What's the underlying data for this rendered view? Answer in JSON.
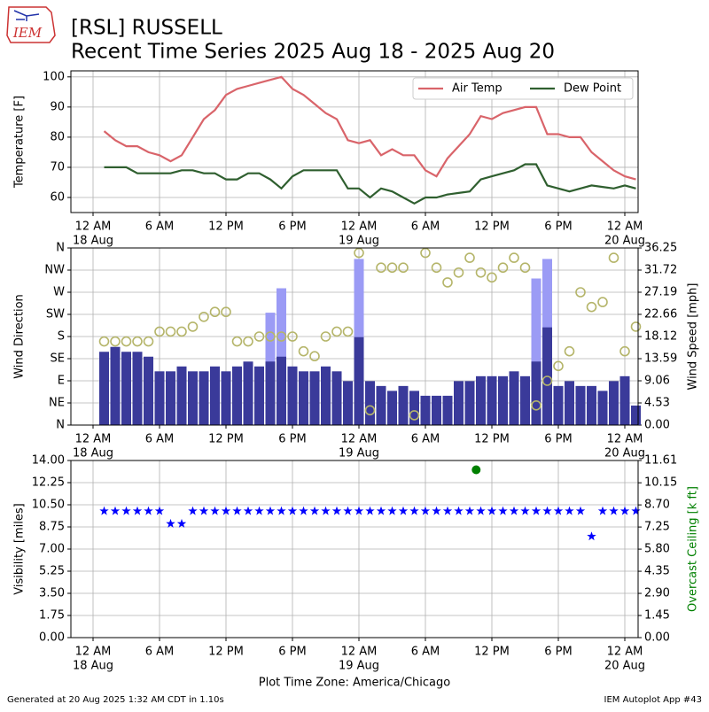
{
  "header": {
    "logo_text": "IEM",
    "title": "[RSL] RUSSELL",
    "subtitle": "Recent Time Series 2025 Aug 18 - 2025 Aug 20"
  },
  "chart_data": [
    {
      "type": "line",
      "ylabel": "Temperature [F]",
      "grid": true,
      "legend": "upper right",
      "xlim": [
        "2025-08-17T22:00",
        "2025-08-20T01:12"
      ],
      "xticks": [
        {
          "value": "2025-08-18T00:00",
          "label": "12 AM"
        },
        {
          "value": "2025-08-18T06:00",
          "label": "6 AM"
        },
        {
          "value": "2025-08-18T12:00",
          "label": "12 PM"
        },
        {
          "value": "2025-08-18T18:00",
          "label": "6 PM"
        },
        {
          "value": "2025-08-19T00:00",
          "label": "12 AM"
        },
        {
          "value": "2025-08-19T06:00",
          "label": "6 AM"
        },
        {
          "value": "2025-08-19T12:00",
          "label": "12 PM"
        },
        {
          "value": "2025-08-19T18:00",
          "label": "6 PM"
        },
        {
          "value": "2025-08-20T00:00",
          "label": "12 AM"
        }
      ],
      "xtick_dates": [
        {
          "value": "2025-08-18T00:00",
          "label": "18 Aug"
        },
        {
          "value": "2025-08-19T00:00",
          "label": "19 Aug"
        },
        {
          "value": "2025-08-20T00:00",
          "label": "20 Aug"
        }
      ],
      "ylim": [
        55,
        102
      ],
      "yticks": [
        60,
        70,
        80,
        90,
        100
      ],
      "x": [
        "2025-08-18T01:00",
        "2025-08-18T02:00",
        "2025-08-18T03:00",
        "2025-08-18T04:00",
        "2025-08-18T05:00",
        "2025-08-18T06:00",
        "2025-08-18T07:00",
        "2025-08-18T08:00",
        "2025-08-18T09:00",
        "2025-08-18T10:00",
        "2025-08-18T11:00",
        "2025-08-18T12:00",
        "2025-08-18T13:00",
        "2025-08-18T14:00",
        "2025-08-18T15:00",
        "2025-08-18T16:00",
        "2025-08-18T17:00",
        "2025-08-18T18:00",
        "2025-08-18T19:00",
        "2025-08-18T20:00",
        "2025-08-18T21:00",
        "2025-08-18T22:00",
        "2025-08-18T23:00",
        "2025-08-19T00:00",
        "2025-08-19T01:00",
        "2025-08-19T02:00",
        "2025-08-19T03:00",
        "2025-08-19T04:00",
        "2025-08-19T05:00",
        "2025-08-19T06:00",
        "2025-08-19T07:00",
        "2025-08-19T08:00",
        "2025-08-19T09:00",
        "2025-08-19T10:00",
        "2025-08-19T11:00",
        "2025-08-19T12:00",
        "2025-08-19T13:00",
        "2025-08-19T14:00",
        "2025-08-19T15:00",
        "2025-08-19T16:00",
        "2025-08-19T17:00",
        "2025-08-19T18:00",
        "2025-08-19T19:00",
        "2025-08-19T20:00",
        "2025-08-19T21:00",
        "2025-08-19T22:00",
        "2025-08-19T23:00",
        "2025-08-20T00:00",
        "2025-08-20T01:00"
      ],
      "series": [
        {
          "name": "Air Temp",
          "color": "#d9646a",
          "values": [
            82,
            79,
            77,
            77,
            75,
            74,
            72,
            74,
            80,
            86,
            89,
            94,
            96,
            97,
            98,
            99,
            100,
            96,
            94,
            91,
            88,
            86,
            79,
            78,
            79,
            74,
            76,
            74,
            74,
            69,
            67,
            73,
            77,
            81,
            87,
            86,
            88,
            89,
            90,
            90,
            81,
            81,
            80,
            80,
            75,
            72,
            69,
            67,
            66
          ]
        },
        {
          "name": "Dew Point",
          "color": "#2f5f2f",
          "values": [
            70,
            70,
            70,
            68,
            68,
            68,
            68,
            69,
            69,
            68,
            68,
            66,
            66,
            68,
            68,
            66,
            63,
            67,
            69,
            69,
            69,
            69,
            63,
            63,
            60,
            63,
            62,
            60,
            58,
            60,
            60,
            61,
            61.5,
            62,
            66,
            67,
            68,
            69,
            71,
            71,
            64,
            63,
            62,
            63,
            64,
            63.5,
            63,
            64,
            63
          ]
        }
      ]
    },
    {
      "type": "mixed",
      "ylabel": "Wind Direction",
      "y2label": "Wind Speed [mph]",
      "grid": true,
      "xlim": [
        "2025-08-17T22:00",
        "2025-08-20T01:12"
      ],
      "xticks": [
        {
          "value": "2025-08-18T00:00",
          "label": "12 AM"
        },
        {
          "value": "2025-08-18T06:00",
          "label": "6 AM"
        },
        {
          "value": "2025-08-18T12:00",
          "label": "12 PM"
        },
        {
          "value": "2025-08-18T18:00",
          "label": "6 PM"
        },
        {
          "value": "2025-08-19T00:00",
          "label": "12 AM"
        },
        {
          "value": "2025-08-19T06:00",
          "label": "6 AM"
        },
        {
          "value": "2025-08-19T12:00",
          "label": "12 PM"
        },
        {
          "value": "2025-08-19T18:00",
          "label": "6 PM"
        },
        {
          "value": "2025-08-20T00:00",
          "label": "12 AM"
        }
      ],
      "xtick_dates": [
        {
          "value": "2025-08-18T00:00",
          "label": "18 Aug"
        },
        {
          "value": "2025-08-19T00:00",
          "label": "19 Aug"
        },
        {
          "value": "2025-08-20T00:00",
          "label": "20 Aug"
        }
      ],
      "ylim": [
        0,
        360
      ],
      "yticks": [
        {
          "value": 0,
          "label": "N"
        },
        {
          "value": 45,
          "label": "NE"
        },
        {
          "value": 90,
          "label": "E"
        },
        {
          "value": 135,
          "label": "SE"
        },
        {
          "value": 180,
          "label": "S"
        },
        {
          "value": 225,
          "label": "SW"
        },
        {
          "value": 270,
          "label": "W"
        },
        {
          "value": 315,
          "label": "NW"
        },
        {
          "value": 360,
          "label": "N"
        }
      ],
      "y2lim": [
        0,
        36.25
      ],
      "y2ticks": [
        {
          "value": 0,
          "label": "0.00"
        },
        4.53,
        9.06,
        13.59,
        18.12,
        22.66,
        27.19,
        31.72,
        36.25
      ],
      "x": [
        "2025-08-18T01:00",
        "2025-08-18T02:00",
        "2025-08-18T03:00",
        "2025-08-18T04:00",
        "2025-08-18T05:00",
        "2025-08-18T06:00",
        "2025-08-18T07:00",
        "2025-08-18T08:00",
        "2025-08-18T09:00",
        "2025-08-18T10:00",
        "2025-08-18T11:00",
        "2025-08-18T12:00",
        "2025-08-18T13:00",
        "2025-08-18T14:00",
        "2025-08-18T15:00",
        "2025-08-18T16:00",
        "2025-08-18T17:00",
        "2025-08-18T18:00",
        "2025-08-18T19:00",
        "2025-08-18T20:00",
        "2025-08-18T21:00",
        "2025-08-18T22:00",
        "2025-08-18T23:00",
        "2025-08-19T00:00",
        "2025-08-19T01:00",
        "2025-08-19T02:00",
        "2025-08-19T03:00",
        "2025-08-19T04:00",
        "2025-08-19T05:00",
        "2025-08-19T06:00",
        "2025-08-19T07:00",
        "2025-08-19T08:00",
        "2025-08-19T09:00",
        "2025-08-19T10:00",
        "2025-08-19T11:00",
        "2025-08-19T12:00",
        "2025-08-19T13:00",
        "2025-08-19T14:00",
        "2025-08-19T15:00",
        "2025-08-19T16:00",
        "2025-08-19T17:00",
        "2025-08-19T18:00",
        "2025-08-19T19:00",
        "2025-08-19T20:00",
        "2025-08-19T21:00",
        "2025-08-19T22:00",
        "2025-08-19T23:00",
        "2025-08-20T00:00",
        "2025-08-20T01:00"
      ],
      "series": [
        {
          "type": "bar",
          "axis": "y2",
          "color": "#9b9bf5",
          "values": [
            null,
            null,
            null,
            null,
            null,
            null,
            null,
            null,
            null,
            null,
            null,
            null,
            null,
            null,
            null,
            23,
            28,
            null,
            null,
            null,
            null,
            null,
            null,
            34,
            null,
            null,
            null,
            null,
            null,
            null,
            null,
            null,
            null,
            null,
            null,
            null,
            null,
            null,
            null,
            30,
            34,
            null,
            null,
            null,
            null,
            null,
            null,
            null,
            null
          ]
        },
        {
          "type": "bar",
          "axis": "y2",
          "color": "#3a3a9a",
          "values": [
            15,
            16,
            15,
            15,
            14,
            11,
            11,
            12,
            11,
            11,
            12,
            11,
            12,
            13,
            12,
            13,
            14,
            12,
            11,
            11,
            12,
            11,
            9,
            18,
            9,
            8,
            7,
            8,
            7,
            6,
            6,
            6,
            9,
            9,
            10,
            10,
            10,
            11,
            10,
            13,
            20,
            8,
            9,
            8,
            8,
            7,
            9,
            10,
            4
          ]
        },
        {
          "type": "scatter",
          "axis": "y",
          "color": "#b5b56a",
          "values": [
            170,
            170,
            170,
            170,
            170,
            190,
            190,
            190,
            200,
            220,
            230,
            230,
            170,
            170,
            180,
            180,
            180,
            180,
            150,
            140,
            180,
            190,
            190,
            350,
            30,
            320,
            320,
            320,
            20,
            350,
            320,
            290,
            310,
            340,
            310,
            300,
            320,
            340,
            320,
            40,
            90,
            120,
            150,
            270,
            240,
            250,
            340,
            150,
            200
          ]
        }
      ]
    },
    {
      "type": "scatter",
      "ylabel": "Visibility [miles]",
      "y2label": "Overcast Ceiling [k ft]",
      "xlabel": "Plot Time Zone: America/Chicago",
      "grid": true,
      "xlim": [
        "2025-08-17T22:00",
        "2025-08-20T01:12"
      ],
      "xticks": [
        {
          "value": "2025-08-18T00:00",
          "label": "12 AM"
        },
        {
          "value": "2025-08-18T06:00",
          "label": "6 AM"
        },
        {
          "value": "2025-08-18T12:00",
          "label": "12 PM"
        },
        {
          "value": "2025-08-18T18:00",
          "label": "6 PM"
        },
        {
          "value": "2025-08-19T00:00",
          "label": "12 AM"
        },
        {
          "value": "2025-08-19T06:00",
          "label": "6 AM"
        },
        {
          "value": "2025-08-19T12:00",
          "label": "12 PM"
        },
        {
          "value": "2025-08-19T18:00",
          "label": "6 PM"
        },
        {
          "value": "2025-08-20T00:00",
          "label": "12 AM"
        }
      ],
      "xtick_dates": [
        {
          "value": "2025-08-18T00:00",
          "label": "18 Aug"
        },
        {
          "value": "2025-08-19T00:00",
          "label": "19 Aug"
        },
        {
          "value": "2025-08-20T00:00",
          "label": "20 Aug"
        }
      ],
      "ylim": [
        0,
        14
      ],
      "yticks": [
        {
          "value": 0,
          "label": "0.00"
        },
        1.75,
        {
          "value": 3.5,
          "label": "3.50"
        },
        5.25,
        {
          "value": 7,
          "label": "7.00"
        },
        8.75,
        {
          "value": 10.5,
          "label": "10.50"
        },
        12.25,
        {
          "value": 14,
          "label": "14.00"
        }
      ],
      "y2lim": [
        0,
        11.61
      ],
      "y2ticks": [
        {
          "value": 0,
          "label": "0.00"
        },
        1.45,
        {
          "value": 2.9,
          "label": "2.90"
        },
        4.35,
        {
          "value": 5.8,
          "label": "5.80"
        },
        7.25,
        {
          "value": 8.7,
          "label": "8.70"
        },
        10.15,
        11.61
      ],
      "series": [
        {
          "marker": "star",
          "axis": "y",
          "color": "#0000ff",
          "x": [
            "2025-08-18T01:00",
            "2025-08-18T02:00",
            "2025-08-18T03:00",
            "2025-08-18T04:00",
            "2025-08-18T05:00",
            "2025-08-18T06:00",
            "2025-08-18T07:00",
            "2025-08-18T08:00",
            "2025-08-18T09:00",
            "2025-08-18T10:00",
            "2025-08-18T11:00",
            "2025-08-18T12:00",
            "2025-08-18T13:00",
            "2025-08-18T14:00",
            "2025-08-18T15:00",
            "2025-08-18T16:00",
            "2025-08-18T17:00",
            "2025-08-18T18:00",
            "2025-08-18T19:00",
            "2025-08-18T20:00",
            "2025-08-18T21:00",
            "2025-08-18T22:00",
            "2025-08-18T23:00",
            "2025-08-19T00:00",
            "2025-08-19T01:00",
            "2025-08-19T02:00",
            "2025-08-19T03:00",
            "2025-08-19T04:00",
            "2025-08-19T05:00",
            "2025-08-19T06:00",
            "2025-08-19T07:00",
            "2025-08-19T08:00",
            "2025-08-19T09:00",
            "2025-08-19T10:00",
            "2025-08-19T11:00",
            "2025-08-19T12:00",
            "2025-08-19T13:00",
            "2025-08-19T14:00",
            "2025-08-19T15:00",
            "2025-08-19T16:00",
            "2025-08-19T17:00",
            "2025-08-19T18:00",
            "2025-08-19T19:00",
            "2025-08-19T20:00",
            "2025-08-19T21:00",
            "2025-08-19T22:00",
            "2025-08-19T23:00",
            "2025-08-20T00:00",
            "2025-08-20T01:00"
          ],
          "values": [
            10,
            10,
            10,
            10,
            10,
            10,
            9,
            9,
            10,
            10,
            10,
            10,
            10,
            10,
            10,
            10,
            10,
            10,
            10,
            10,
            10,
            10,
            10,
            10,
            10,
            10,
            10,
            10,
            10,
            10,
            10,
            10,
            10,
            10,
            10,
            10,
            10,
            10,
            10,
            10,
            10,
            10,
            10,
            10,
            8,
            10,
            10,
            10,
            10
          ]
        },
        {
          "marker": "circle",
          "axis": "y2",
          "color": "#008000",
          "x": [
            "2025-08-19T10:35"
          ],
          "values": [
            11.0
          ]
        }
      ]
    }
  ],
  "footer": {
    "left": "Generated at 20 Aug 2025 1:32 AM CDT in 1.10s",
    "right": "IEM Autoplot App #43"
  }
}
